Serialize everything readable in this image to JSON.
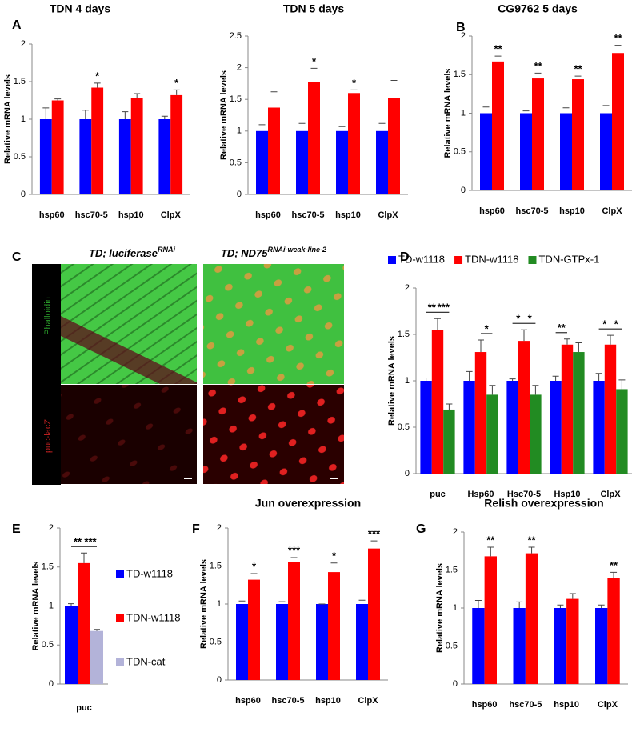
{
  "chart_data": [
    {
      "type": "bar",
      "title": "TDN 4 days",
      "panel": "A",
      "ylabel": "Relative mRNA levels",
      "categories": [
        "hsp60",
        "hsc70-5",
        "hsp10",
        "ClpX"
      ],
      "series": [
        {
          "color": "#0000ff",
          "values": [
            1,
            1,
            1,
            1
          ],
          "errors": [
            0.15,
            0.12,
            0.1,
            0.04
          ]
        },
        {
          "color": "#ff0000",
          "values": [
            1.25,
            1.42,
            1.28,
            1.32
          ],
          "errors": [
            0.02,
            0.06,
            0.06,
            0.07
          ],
          "annotations": [
            null,
            "*",
            null,
            "*"
          ]
        }
      ],
      "ylim": [
        0,
        2
      ],
      "yticks": [
        0,
        0.5,
        1,
        1.5,
        2
      ]
    },
    {
      "type": "bar",
      "title": "TDN 5 days",
      "ylabel": "Relative mRNA levels",
      "categories": [
        "hsp60",
        "hsc70-5",
        "hsp10",
        "ClpX"
      ],
      "series": [
        {
          "color": "#0000ff",
          "values": [
            1,
            1,
            1,
            1
          ],
          "errors": [
            0.1,
            0.12,
            0.07,
            0.12
          ]
        },
        {
          "color": "#ff0000",
          "values": [
            1.37,
            1.77,
            1.6,
            1.52
          ],
          "errors": [
            0.25,
            0.22,
            0.05,
            0.28
          ],
          "annotations": [
            null,
            "*",
            "*",
            null
          ]
        }
      ],
      "ylim": [
        0,
        2.5
      ],
      "yticks": [
        0,
        0.5,
        1,
        1.5,
        2,
        2.5
      ]
    },
    {
      "type": "bar",
      "title": "CG9762 5 days",
      "panel": "B",
      "ylabel": "Relative mRNA levels",
      "categories": [
        "hsp60",
        "hsc70-5",
        "hsp10",
        "ClpX"
      ],
      "series": [
        {
          "color": "#0000ff",
          "values": [
            1,
            1,
            1,
            1
          ],
          "errors": [
            0.08,
            0.03,
            0.07,
            0.1
          ]
        },
        {
          "color": "#ff0000",
          "values": [
            1.67,
            1.45,
            1.44,
            1.78
          ],
          "errors": [
            0.07,
            0.07,
            0.04,
            0.1
          ],
          "annotations": [
            "**",
            "**",
            "**",
            "**"
          ]
        }
      ],
      "ylim": [
        0,
        2
      ],
      "yticks": [
        0,
        0.5,
        1,
        1.5,
        2
      ]
    },
    {
      "type": "bar",
      "panel": "D",
      "ylabel": "Relative mRNA levels",
      "legend": "top",
      "brackets": true,
      "categories": [
        "puc",
        "Hsp60",
        "Hsc70-5",
        "Hsp10",
        "ClpX"
      ],
      "series": [
        {
          "name": "TD-w1118",
          "color": "#0000ff",
          "values": [
            1,
            1,
            1,
            1,
            1
          ],
          "errors": [
            0.03,
            0.1,
            0.02,
            0.05,
            0.08
          ]
        },
        {
          "name": "TDN-w1118",
          "color": "#ff0000",
          "values": [
            1.55,
            1.31,
            1.43,
            1.39,
            1.39
          ],
          "errors": [
            0.12,
            0.13,
            0.12,
            0.06,
            0.1
          ],
          "annotations": [
            "**",
            null,
            "*",
            "**",
            "*"
          ]
        },
        {
          "name": "TDN-GTPx-1",
          "color": "#228b22",
          "values": [
            0.69,
            0.85,
            0.85,
            1.31,
            0.91
          ],
          "errors": [
            0.06,
            0.1,
            0.1,
            0.1,
            0.1
          ],
          "annotations": [
            "***",
            "*",
            "*",
            null,
            "*"
          ]
        }
      ],
      "ylim": [
        0,
        2
      ],
      "yticks": [
        0,
        0.5,
        1,
        1.5,
        2
      ]
    },
    {
      "type": "bar",
      "panel": "E",
      "ylabel": "Relative mRNA levels",
      "legend": "right",
      "brackets": true,
      "categories": [
        "puc"
      ],
      "series": [
        {
          "name": "TD-w1118",
          "color": "#0000ff",
          "values": [
            1
          ],
          "errors": [
            0.03
          ]
        },
        {
          "name": "TDN-w1118",
          "color": "#ff0000",
          "values": [
            1.55
          ],
          "errors": [
            0.13
          ],
          "annotations": [
            "**"
          ]
        },
        {
          "name": "TDN-cat",
          "color": "#b3b3d9",
          "values": [
            0.68
          ],
          "errors": [
            0.02
          ],
          "annotations": [
            "***"
          ]
        }
      ],
      "ylim": [
        0,
        2
      ],
      "yticks": [
        0,
        0.5,
        1,
        1.5,
        2
      ]
    },
    {
      "type": "bar",
      "title": "Jun overexpression",
      "panel": "F",
      "ylabel": "Relative mRNA levels",
      "categories": [
        "hsp60",
        "hsc70-5",
        "hsp10",
        "ClpX"
      ],
      "series": [
        {
          "color": "#0000ff",
          "values": [
            1,
            1,
            1,
            1
          ],
          "errors": [
            0.04,
            0.03,
            0,
            0.05
          ]
        },
        {
          "color": "#ff0000",
          "values": [
            1.32,
            1.55,
            1.42,
            1.73
          ],
          "errors": [
            0.08,
            0.06,
            0.12,
            0.1
          ],
          "annotations": [
            "*",
            "***",
            "*",
            "***"
          ]
        }
      ],
      "ylim": [
        0,
        2
      ],
      "yticks": [
        0,
        0.5,
        1,
        1.5,
        2
      ]
    },
    {
      "type": "bar",
      "title": "Relish overexpression",
      "panel": "G",
      "ylabel": "Relative mRNA levels",
      "categories": [
        "hsp60",
        "hsc70-5",
        "hsp10",
        "ClpX"
      ],
      "series": [
        {
          "color": "#0000ff",
          "values": [
            1,
            1,
            1,
            1
          ],
          "errors": [
            0.1,
            0.08,
            0.04,
            0.04
          ]
        },
        {
          "color": "#ff0000",
          "values": [
            1.68,
            1.72,
            1.12,
            1.4
          ],
          "errors": [
            0.12,
            0.08,
            0.07,
            0.07
          ],
          "annotations": [
            "**",
            "**",
            null,
            "**"
          ]
        }
      ],
      "ylim": [
        0,
        2
      ],
      "yticks": [
        0,
        0.5,
        1,
        1.5,
        2
      ]
    }
  ],
  "image_panel": {
    "panel": "C",
    "left_label": "TD; luciferase",
    "left_sup": "RNAi",
    "right_label": "TD; ND75",
    "right_sup": "RNAi-weak-line-2",
    "top_stain": "Phalloidin",
    "bottom_stain": "puc-lacZ"
  }
}
